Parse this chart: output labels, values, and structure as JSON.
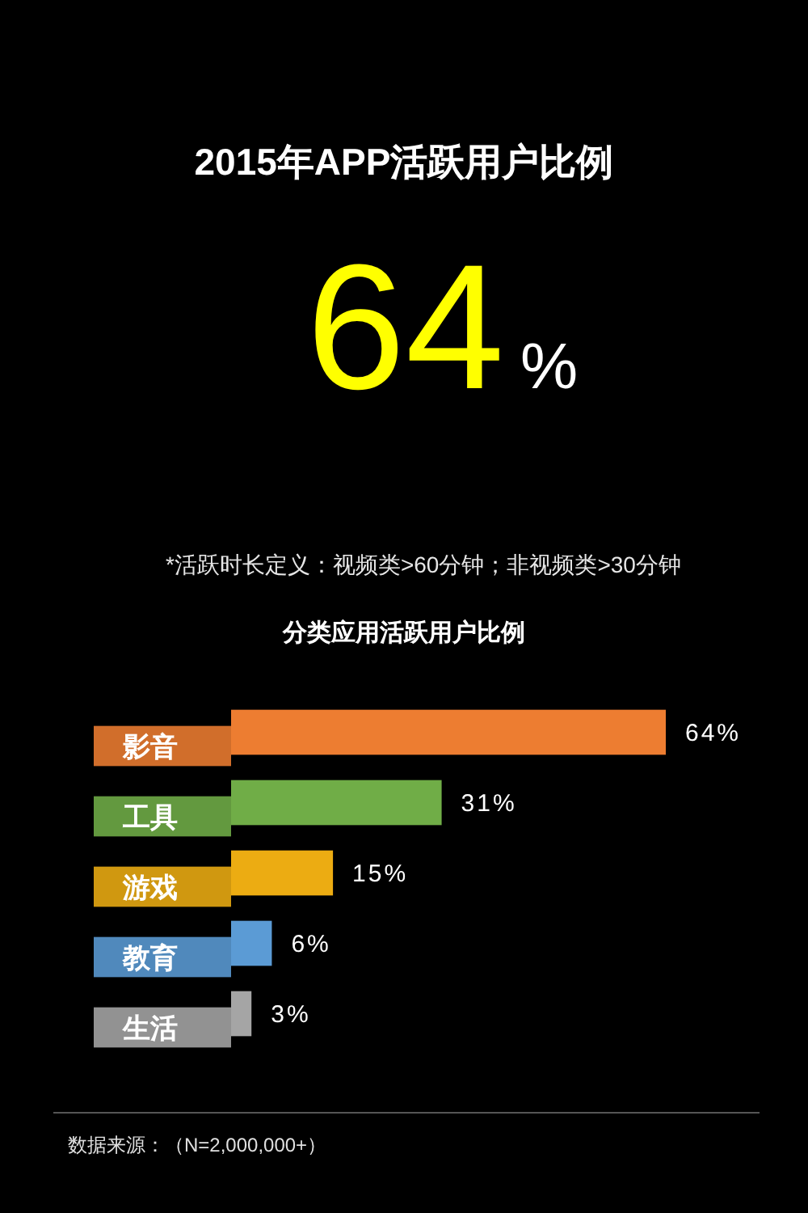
{
  "chart_data": {
    "type": "bar",
    "orientation": "horizontal",
    "title": "2015年APP活跃用户比例",
    "subtitle": "分类应用活跃用户比例",
    "annotations": [
      "64%",
      "*活跃时长定义：视频类>60分钟；非视频类>30分钟",
      "数据来源：（N=2,000,000+）"
    ],
    "categories": [
      "影音",
      "工具",
      "游戏",
      "教育",
      "生活"
    ],
    "values": [
      64,
      31,
      15,
      6,
      3
    ],
    "colors": [
      "#ed7d31",
      "#70ad47",
      "#ecac12",
      "#5b9bd5",
      "#a5a5a5"
    ],
    "value_labels": [
      "64%",
      "31%",
      "15%",
      "6%",
      "3%"
    ]
  }
}
